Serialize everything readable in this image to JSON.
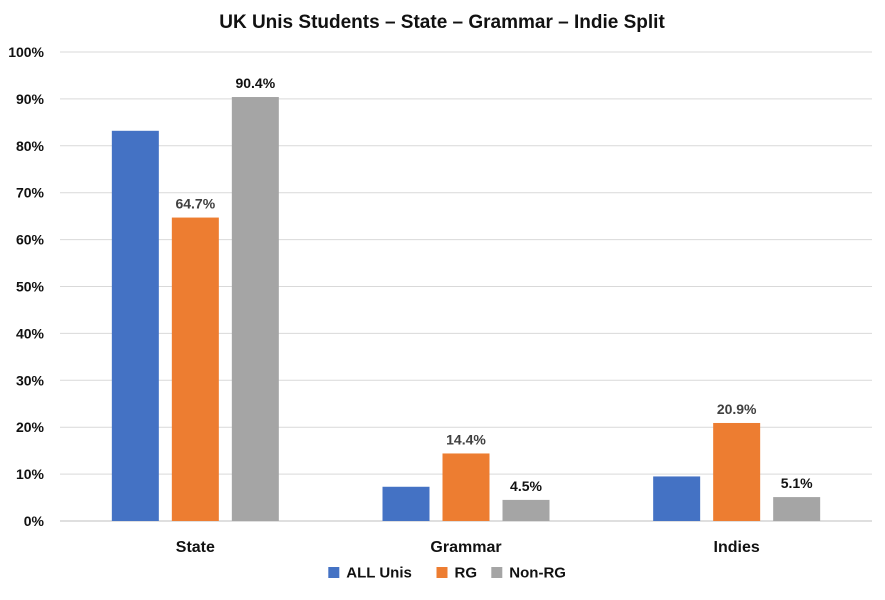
{
  "chart_data": {
    "type": "bar",
    "title": "UK Unis Students – State – Grammar – Indie Split",
    "categories": [
      "State",
      "Grammar",
      "Indies"
    ],
    "y_ticks": [
      "0%",
      "10%",
      "20%",
      "30%",
      "40%",
      "50%",
      "60%",
      "70%",
      "80%",
      "90%",
      "100%"
    ],
    "ylim": [
      0,
      100
    ],
    "grid": true,
    "legend_position": "bottom",
    "series": [
      {
        "name": "ALL Unis",
        "color": "#4472c4",
        "values": [
          83.2,
          7.3,
          9.5
        ],
        "labels": [
          "",
          "",
          ""
        ]
      },
      {
        "name": "RG",
        "color": "#ed7d31",
        "values": [
          64.7,
          14.4,
          20.9
        ],
        "labels": [
          "64.7%",
          "14.4%",
          "20.9%"
        ]
      },
      {
        "name": "Non-RG",
        "color": "#a5a5a5",
        "values": [
          90.4,
          4.5,
          5.1
        ],
        "labels": [
          "90.4%",
          "4.5%",
          "5.1%"
        ]
      }
    ]
  }
}
